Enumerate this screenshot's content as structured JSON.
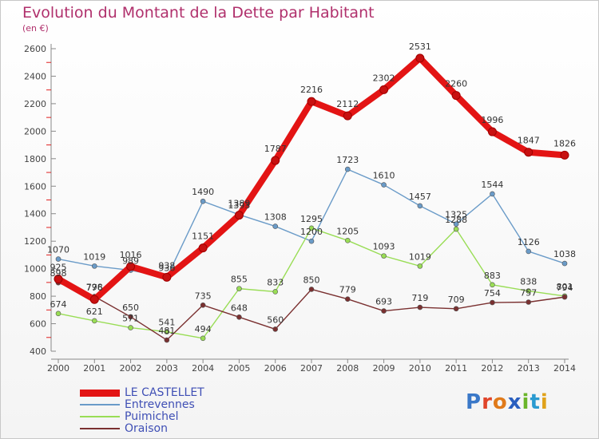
{
  "header": {
    "title": "Evolution du Montant de la Dette par Habitant",
    "subtitle": "(en €)"
  },
  "logo": {
    "text": "Proxiti",
    "letters": [
      "P",
      "r",
      "o",
      "x",
      "i",
      "t",
      "i"
    ],
    "colors": [
      "#3a78c8",
      "#e0452a",
      "#e07a1a",
      "#2a5fbf",
      "#6ab52a",
      "#2a9ad0",
      "#e0a21a"
    ]
  },
  "chart_data": {
    "type": "line",
    "title": "Evolution du Montant de la Dette par Habitant",
    "ylabel": "(en €)",
    "xlabel": "",
    "x": [
      2000,
      2001,
      2002,
      2003,
      2004,
      2005,
      2006,
      2007,
      2008,
      2009,
      2010,
      2011,
      2012,
      2013,
      2014
    ],
    "ylim": [
      400,
      2600
    ],
    "yticks": [
      400,
      600,
      800,
      1000,
      1200,
      1400,
      1600,
      1800,
      2000,
      2200,
      2400,
      2600
    ],
    "grid": false,
    "legend": "bottom-left",
    "series": [
      {
        "name": "LE CASTELLET",
        "color": "#e31414",
        "bold": true,
        "values": [
          925,
          776,
          1016,
          938,
          1151,
          1389,
          1787,
          2216,
          2112,
          2302,
          2531,
          2260,
          1996,
          1847,
          1826
        ]
      },
      {
        "name": "Entrevennes",
        "color": "#6a9bc8",
        "bold": false,
        "values": [
          1070,
          1019,
          989,
          936,
          1490,
          1393,
          1308,
          1200,
          1723,
          1610,
          1457,
          1325,
          1544,
          1126,
          1038
        ]
      },
      {
        "name": "Puimichel",
        "color": "#99dd55",
        "bold": false,
        "values": [
          674,
          621,
          571,
          541,
          494,
          855,
          833,
          1295,
          1205,
          1093,
          1019,
          1288,
          883,
          838,
          801
        ]
      },
      {
        "name": "Oraison",
        "color": "#7a3030",
        "bold": false,
        "values": [
          898,
          798,
          650,
          481,
          735,
          648,
          560,
          850,
          779,
          693,
          719,
          709,
          754,
          757,
          794
        ]
      }
    ]
  }
}
